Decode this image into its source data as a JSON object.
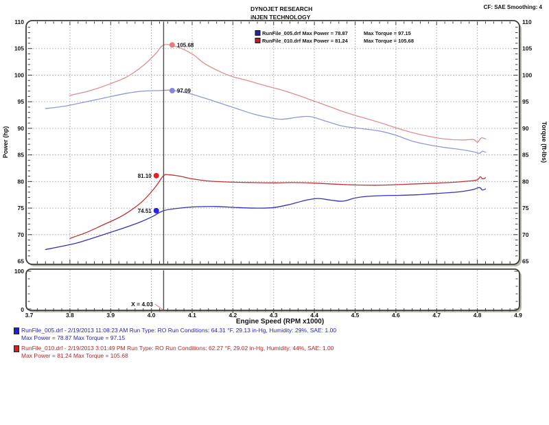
{
  "header": {
    "title_line1": "DYNOJET RESEARCH",
    "title_line2": "iNJEN TECHNOLOGY",
    "cf_label": "CF: SAE  Smoothing: 4"
  },
  "legend": {
    "items": [
      {
        "swatch_color": "#2424a8",
        "power_label": "RunFile_005.drf Max Power = 78.87",
        "torque_label": "Max Torque = 97.15"
      },
      {
        "swatch_color": "#b42424",
        "power_label": "RunFile_010.drf Max Power = 81.24",
        "torque_label": "Max Torque = 105.68"
      }
    ]
  },
  "chart_data": {
    "type": "line",
    "xlabel": "Engine Speed (RPM x1000)",
    "ylabel_left": "Power (hp)",
    "ylabel_right": "Torque (ft-lbs)",
    "xlim": [
      3.7,
      4.9
    ],
    "ylim": [
      65,
      110
    ],
    "grid": "dotted",
    "x_ticks": [
      "3.7",
      "3.8",
      "3.9",
      "4.0",
      "4.1",
      "4.2",
      "4.3",
      "4.4",
      "4.5",
      "4.6",
      "4.7",
      "4.8",
      "4.9"
    ],
    "y_ticks": [
      110,
      105,
      100,
      95,
      90,
      85,
      80,
      75,
      70,
      65
    ],
    "cursor": {
      "x": 4.03,
      "label": "X = 4.03"
    },
    "sub_chart": {
      "ylim": [
        0,
        100
      ],
      "y_tick_labels": [
        "100",
        "0"
      ]
    },
    "series": [
      {
        "name": "RunFile_005.drf Torque",
        "color": "#9098d4",
        "points": [
          [
            3.74,
            93.7
          ],
          [
            3.79,
            94.2
          ],
          [
            3.84,
            95.0
          ],
          [
            3.89,
            95.8
          ],
          [
            3.94,
            96.6
          ],
          [
            3.98,
            97.0
          ],
          [
            4.02,
            97.1
          ],
          [
            4.05,
            97.15
          ],
          [
            4.09,
            96.6
          ],
          [
            4.13,
            95.7
          ],
          [
            4.17,
            94.7
          ],
          [
            4.21,
            93.7
          ],
          [
            4.25,
            92.7
          ],
          [
            4.29,
            92.0
          ],
          [
            4.32,
            91.7
          ],
          [
            4.36,
            92.1
          ],
          [
            4.39,
            92.2
          ],
          [
            4.43,
            91.3
          ],
          [
            4.47,
            90.4
          ],
          [
            4.51,
            90.0
          ],
          [
            4.56,
            89.5
          ],
          [
            4.6,
            88.7
          ],
          [
            4.64,
            87.6
          ],
          [
            4.68,
            86.9
          ],
          [
            4.72,
            86.4
          ],
          [
            4.76,
            86.0
          ],
          [
            4.79,
            85.6
          ],
          [
            4.805,
            85.3
          ],
          [
            4.812,
            85.7
          ],
          [
            4.82,
            85.5
          ]
        ]
      },
      {
        "name": "RunFile_010.drf Torque",
        "color": "#dc8e8e",
        "points": [
          [
            3.8,
            96.2
          ],
          [
            3.85,
            97.1
          ],
          [
            3.9,
            98.4
          ],
          [
            3.94,
            99.7
          ],
          [
            3.98,
            101.8
          ],
          [
            4.01,
            104.0
          ],
          [
            4.03,
            105.68
          ],
          [
            4.06,
            105.4
          ],
          [
            4.1,
            104.0
          ],
          [
            4.13,
            102.2
          ],
          [
            4.17,
            100.6
          ],
          [
            4.2,
            99.7
          ],
          [
            4.24,
            98.9
          ],
          [
            4.28,
            98.0
          ],
          [
            4.32,
            97.2
          ],
          [
            4.36,
            96.2
          ],
          [
            4.4,
            95.1
          ],
          [
            4.44,
            94.0
          ],
          [
            4.48,
            92.9
          ],
          [
            4.52,
            92.0
          ],
          [
            4.56,
            91.1
          ],
          [
            4.6,
            90.1
          ],
          [
            4.64,
            89.2
          ],
          [
            4.68,
            88.5
          ],
          [
            4.72,
            88.0
          ],
          [
            4.76,
            87.8
          ],
          [
            4.79,
            87.9
          ],
          [
            4.8,
            87.4
          ],
          [
            4.81,
            88.2
          ],
          [
            4.82,
            88.0
          ]
        ]
      },
      {
        "name": "RunFile_005.drf Power",
        "color": "#3232b4",
        "points": [
          [
            3.74,
            67.2
          ],
          [
            3.81,
            68.3
          ],
          [
            3.85,
            69.2
          ],
          [
            3.89,
            70.2
          ],
          [
            3.93,
            71.2
          ],
          [
            3.97,
            72.3
          ],
          [
            4.0,
            73.3
          ],
          [
            4.03,
            74.51
          ],
          [
            4.07,
            75.0
          ],
          [
            4.11,
            75.25
          ],
          [
            4.16,
            75.3
          ],
          [
            4.21,
            75.1
          ],
          [
            4.26,
            75.0
          ],
          [
            4.3,
            75.1
          ],
          [
            4.34,
            75.7
          ],
          [
            4.38,
            76.5
          ],
          [
            4.41,
            76.8
          ],
          [
            4.44,
            76.5
          ],
          [
            4.47,
            76.3
          ],
          [
            4.5,
            76.9
          ],
          [
            4.53,
            77.2
          ],
          [
            4.57,
            77.35
          ],
          [
            4.61,
            77.4
          ],
          [
            4.65,
            77.5
          ],
          [
            4.69,
            77.7
          ],
          [
            4.73,
            77.9
          ],
          [
            4.76,
            78.1
          ],
          [
            4.79,
            78.5
          ],
          [
            4.805,
            78.87
          ],
          [
            4.812,
            78.4
          ],
          [
            4.82,
            78.6
          ]
        ]
      },
      {
        "name": "RunFile_010.drf Power",
        "color": "#c03232",
        "points": [
          [
            3.8,
            69.3
          ],
          [
            3.84,
            70.4
          ],
          [
            3.88,
            71.8
          ],
          [
            3.92,
            73.2
          ],
          [
            3.95,
            74.6
          ],
          [
            3.98,
            76.4
          ],
          [
            4.01,
            79.0
          ],
          [
            4.03,
            81.1
          ],
          [
            4.045,
            81.24
          ],
          [
            4.07,
            81.0
          ],
          [
            4.1,
            80.5
          ],
          [
            4.14,
            80.1
          ],
          [
            4.19,
            79.9
          ],
          [
            4.25,
            79.8
          ],
          [
            4.3,
            79.75
          ],
          [
            4.35,
            79.8
          ],
          [
            4.4,
            79.7
          ],
          [
            4.45,
            79.5
          ],
          [
            4.5,
            79.35
          ],
          [
            4.55,
            79.3
          ],
          [
            4.6,
            79.4
          ],
          [
            4.65,
            79.55
          ],
          [
            4.7,
            79.7
          ],
          [
            4.74,
            79.85
          ],
          [
            4.78,
            80.1
          ],
          [
            4.8,
            80.3
          ],
          [
            4.807,
            80.9
          ],
          [
            4.813,
            80.5
          ],
          [
            4.82,
            80.7
          ]
        ]
      }
    ],
    "markers": [
      {
        "label": "105.68",
        "x": 4.051,
        "value": 105.68,
        "color": "#e57f7f",
        "side": "right"
      },
      {
        "label": "97.09",
        "x": 4.051,
        "value": 97.09,
        "color": "#8585e0",
        "side": "right"
      },
      {
        "label": "81.10",
        "x": 4.012,
        "value": 81.1,
        "color": "#e02222",
        "side": "left"
      },
      {
        "label": "74.51",
        "x": 4.012,
        "value": 74.51,
        "color": "#2222e0",
        "side": "left"
      }
    ]
  },
  "footer": {
    "runs": [
      {
        "color": "#2222cc",
        "line1": "RunFile_005.drf - 2/19/2013 11:08:23 AM  Run Type: RO  Run Conditions: 64.31 °F, 29.13 in-Hg,  Humidity:  29%, SAE: 1.00",
        "line2": "Max Power = 78.87  Max Torque = 97.15"
      },
      {
        "color": "#cc2222",
        "line1": "RunFile_010.drf - 2/19/2013 3:01:49 PM  Run Type: RO  Run Conditions: 62.27 °F, 29.02 in-Hg,  Humidity:  44%, SAE: 1.00",
        "line2": "Max Power = 81.24  Max Torque = 105.68"
      }
    ]
  }
}
